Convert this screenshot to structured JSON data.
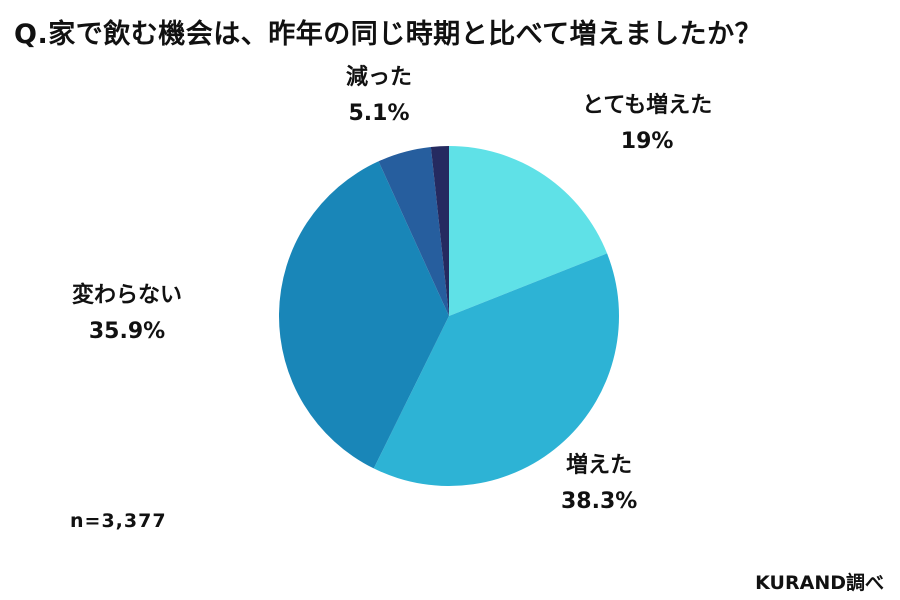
{
  "title": "Q.家で飲む機会は、昨年の同じ時期と比べて増えましたか？",
  "sample_size": "n=3,377",
  "source": "KURAND調べ",
  "chart_data": {
    "type": "pie",
    "title": "Q.家で飲む機会は、昨年の同じ時期と比べて増えましたか？",
    "slices": [
      {
        "label": "とても増えた",
        "value": 19,
        "value_label": "19%",
        "color": "#5fe1e7"
      },
      {
        "label": "増えた",
        "value": 38.3,
        "value_label": "38.3%",
        "color": "#2db3d5"
      },
      {
        "label": "変わらない",
        "value": 35.9,
        "value_label": "35.9%",
        "color": "#1986b8"
      },
      {
        "label": "減った",
        "value": 5.1,
        "value_label": "5.1%",
        "color": "#265e9e"
      },
      {
        "label": "",
        "value": 1.7,
        "value_label": "",
        "color": "#252a60"
      }
    ],
    "start_angle": "12 o'clock",
    "direction": "clockwise"
  }
}
